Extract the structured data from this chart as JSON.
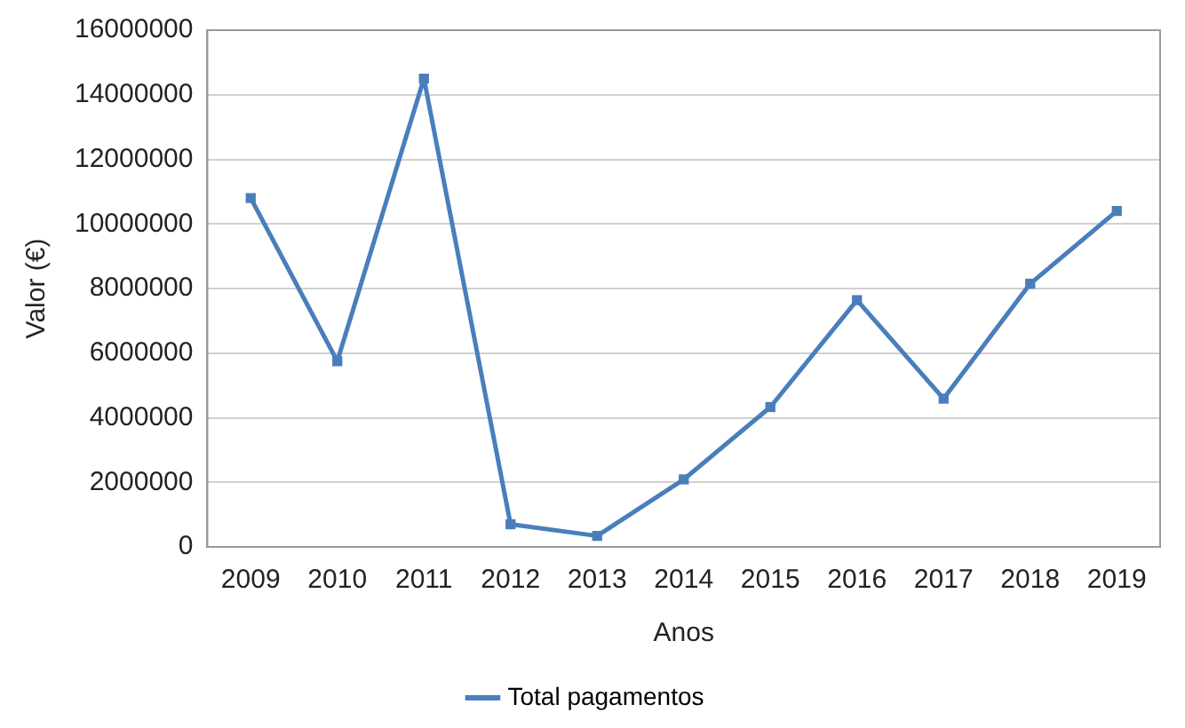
{
  "chart_data": {
    "type": "line",
    "xlabel": "Anos",
    "ylabel": "Valor (€)",
    "categories": [
      "2009",
      "2010",
      "2011",
      "2012",
      "2013",
      "2014",
      "2015",
      "2016",
      "2017",
      "2018",
      "2019"
    ],
    "series": [
      {
        "name": "Total pagamentos",
        "color": "#4a7ebb",
        "values": [
          10800000,
          5750000,
          14500000,
          700000,
          340000,
          2090000,
          4330000,
          7640000,
          4590000,
          8150000,
          10400000
        ]
      }
    ],
    "ylim": [
      0,
      16000000
    ],
    "yticks": [
      0,
      2000000,
      4000000,
      6000000,
      8000000,
      10000000,
      12000000,
      14000000,
      16000000
    ],
    "grid": "y",
    "legend": "bottom",
    "marker": "square",
    "line_style": "solid"
  }
}
